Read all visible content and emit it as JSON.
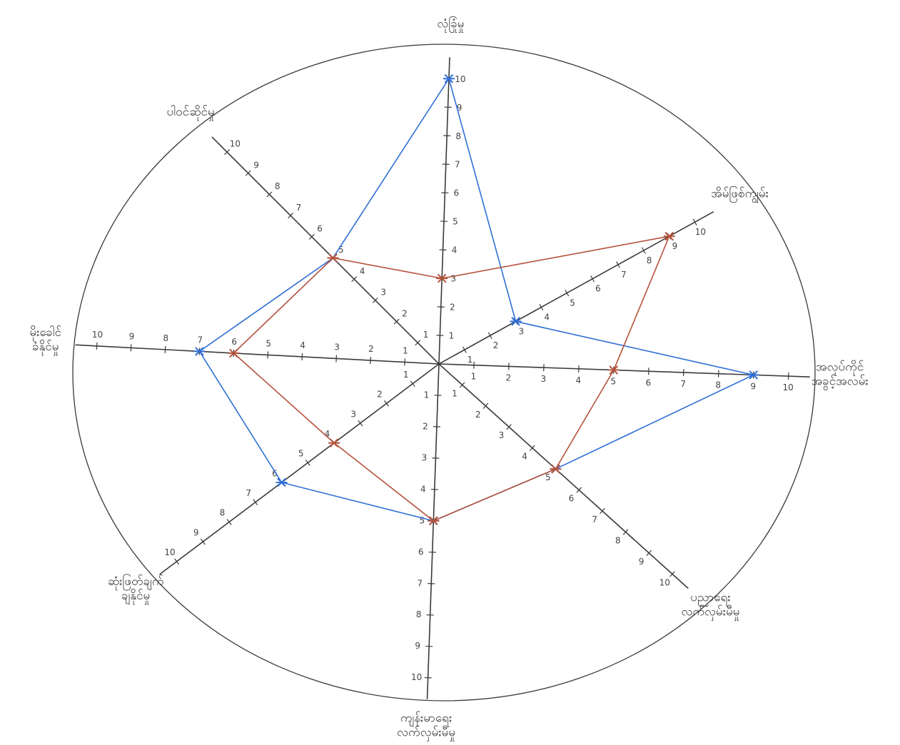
{
  "colors": {
    "paper": "#ffffff",
    "ink": "#3a3a3a",
    "series_blue": "#2f6fd6",
    "series_red": "#b5523b"
  },
  "chart_data": {
    "type": "radar",
    "title": "",
    "rmax": 10,
    "grid": false,
    "legend": "none",
    "axes": [
      "လုံခြုံမှု",
      "အိမ်ဖြစ်ကျွမ်း",
      "အလုပ်ကိုင် အခွင့်အလမ်း",
      "ပညာရေး လက်လှမ်းမီမှု",
      "ကျန်းမာရေး လက်လှမ်းမီမှု",
      "ဆုံးဖြတ်ချက် ချနိုင်မှု",
      "မိုးခေါင် ခံနိုင်မှု",
      "ပါဝင်ဆိုင်မှု"
    ],
    "series": [
      {
        "values": [
          10,
          3,
          9,
          5,
          5,
          6,
          7,
          5
        ]
      },
      {
        "values": [
          3,
          9,
          5,
          5,
          5,
          4,
          6,
          5
        ]
      }
    ]
  }
}
